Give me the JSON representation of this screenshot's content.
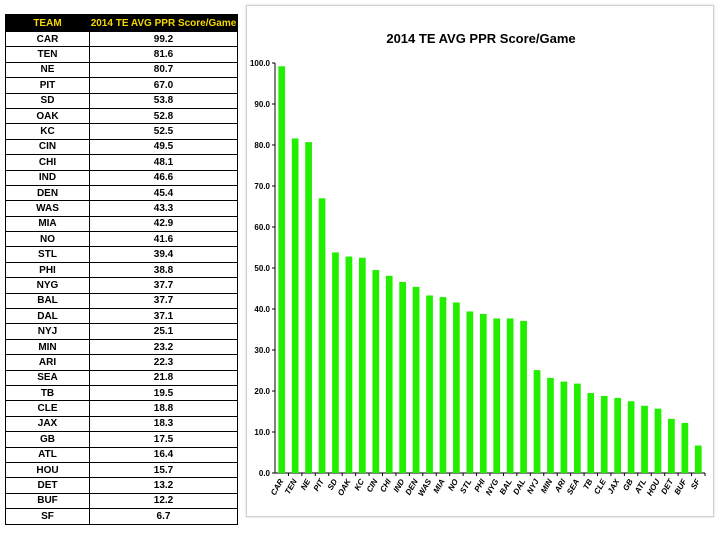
{
  "table": {
    "headers": [
      "TEAM",
      "2014 TE AVG PPR Score/Game"
    ],
    "rows": [
      [
        "CAR",
        "99.2"
      ],
      [
        "TEN",
        "81.6"
      ],
      [
        "NE",
        "80.7"
      ],
      [
        "PIT",
        "67.0"
      ],
      [
        "SD",
        "53.8"
      ],
      [
        "OAK",
        "52.8"
      ],
      [
        "KC",
        "52.5"
      ],
      [
        "CIN",
        "49.5"
      ],
      [
        "CHI",
        "48.1"
      ],
      [
        "IND",
        "46.6"
      ],
      [
        "DEN",
        "45.4"
      ],
      [
        "WAS",
        "43.3"
      ],
      [
        "MIA",
        "42.9"
      ],
      [
        "NO",
        "41.6"
      ],
      [
        "STL",
        "39.4"
      ],
      [
        "PHI",
        "38.8"
      ],
      [
        "NYG",
        "37.7"
      ],
      [
        "BAL",
        "37.7"
      ],
      [
        "DAL",
        "37.1"
      ],
      [
        "NYJ",
        "25.1"
      ],
      [
        "MIN",
        "23.2"
      ],
      [
        "ARI",
        "22.3"
      ],
      [
        "SEA",
        "21.8"
      ],
      [
        "TB",
        "19.5"
      ],
      [
        "CLE",
        "18.8"
      ],
      [
        "JAX",
        "18.3"
      ],
      [
        "GB",
        "17.5"
      ],
      [
        "ATL",
        "16.4"
      ],
      [
        "HOU",
        "15.7"
      ],
      [
        "DET",
        "13.2"
      ],
      [
        "BUF",
        "12.2"
      ],
      [
        "SF",
        "6.7"
      ]
    ],
    "header_bg": "#000000",
    "header_color": "#f5d800"
  },
  "chart_data": {
    "type": "bar",
    "title": "2014 TE AVG PPR Score/Game",
    "xlabel": "",
    "ylabel": "",
    "categories": [
      "CAR",
      "TEN",
      "NE",
      "PIT",
      "SD",
      "OAK",
      "KC",
      "CIN",
      "CHI",
      "IND",
      "DEN",
      "WAS",
      "MIA",
      "NO",
      "STL",
      "PHI",
      "NYG",
      "BAL",
      "DAL",
      "NYJ",
      "MIN",
      "ARI",
      "SEA",
      "TB",
      "CLE",
      "JAX",
      "GB",
      "ATL",
      "HOU",
      "DET",
      "BUF",
      "SF"
    ],
    "values": [
      99.2,
      81.6,
      80.7,
      67.0,
      53.8,
      52.8,
      52.5,
      49.5,
      48.1,
      46.6,
      45.4,
      43.3,
      42.9,
      41.6,
      39.4,
      38.8,
      37.7,
      37.7,
      37.1,
      25.1,
      23.2,
      22.3,
      21.8,
      19.5,
      18.8,
      18.3,
      17.5,
      16.4,
      15.7,
      13.2,
      12.2,
      6.7
    ],
    "ylim": [
      0,
      100
    ],
    "yticks": [
      "0.0",
      "10.0",
      "20.0",
      "30.0",
      "40.0",
      "50.0",
      "60.0",
      "70.0",
      "80.0",
      "90.0",
      "100.0"
    ],
    "grid": false,
    "legend": "none",
    "bar_color": "#22ee00"
  }
}
